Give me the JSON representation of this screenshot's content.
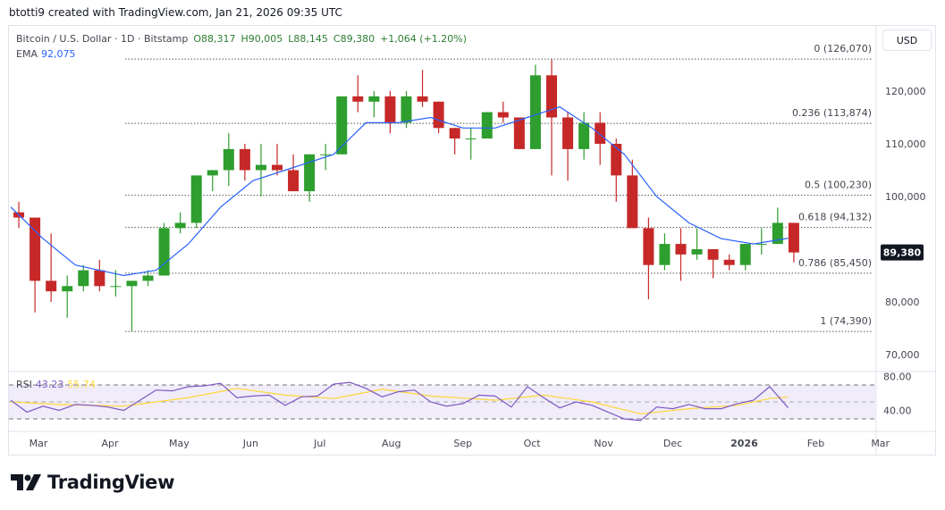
{
  "credit": "btotti9 created with TradingView.com, Jan 21, 2026 09:35 UTC",
  "legend": {
    "symbol": "Bitcoin / U.S. Dollar · 1D · Bitstamp",
    "open": "O88,317",
    "high": "H90,005",
    "low": "L88,145",
    "close": "C89,380",
    "change": "+1,064 (+1.20%)",
    "ema_label": "EMA",
    "ema_value": "92,075"
  },
  "currency_button": "USD",
  "rsi_legend": {
    "label": "RSI",
    "value": "43.23",
    "ma": "55.74"
  },
  "brand": "TradingView",
  "colors": {
    "up": "#089981",
    "up_body": "#2e9e2e",
    "down": "#c62828",
    "ema": "#2962ff",
    "rsi": "#7e57c2",
    "rsi_ma": "#fdd835",
    "rsi_band": "#f0ecfa"
  },
  "chart_data": {
    "type": "candlestick",
    "interval_note": "approximate weekly OHLC (thousand USD) read from daily chart",
    "y_ticks": [
      70000,
      80000,
      100000,
      110000,
      120000
    ],
    "y_tick_labels": [
      "70,000",
      "80,000",
      "100,000",
      "110,000",
      "120,000"
    ],
    "ylim": [
      66000,
      130000
    ],
    "x_ticks": [
      {
        "date": "2025-03-01",
        "label": "Mar"
      },
      {
        "date": "2025-04-01",
        "label": "Apr"
      },
      {
        "date": "2025-05-01",
        "label": "May"
      },
      {
        "date": "2025-06-01",
        "label": "Jun"
      },
      {
        "date": "2025-07-01",
        "label": "Jul"
      },
      {
        "date": "2025-08-01",
        "label": "Aug"
      },
      {
        "date": "2025-09-01",
        "label": "Sep"
      },
      {
        "date": "2025-10-01",
        "label": "Oct"
      },
      {
        "date": "2025-11-01",
        "label": "Nov"
      },
      {
        "date": "2025-12-01",
        "label": "Dec"
      },
      {
        "date": "2026-01-01",
        "label": "2026"
      },
      {
        "date": "2026-02-01",
        "label": "Feb"
      },
      {
        "date": "2026-03-01",
        "label": "Mar"
      }
    ],
    "last_price": 89380,
    "last_price_label": "89,380",
    "fib_levels": [
      {
        "level": "0",
        "price": 126070,
        "label": "0 (126,070)"
      },
      {
        "level": "0.236",
        "price": 113874,
        "label": "0.236 (113,874)"
      },
      {
        "level": "0.5",
        "price": 100230,
        "label": "0.5 (100,230)"
      },
      {
        "level": "0.618",
        "price": 94132,
        "label": "0.618 (94,132)"
      },
      {
        "level": "0.786",
        "price": 85450,
        "label": "0.786 (85,450)"
      },
      {
        "level": "1",
        "price": 74390,
        "label": "1 (74,390)"
      }
    ],
    "candles": [
      [
        "2025-02-17",
        97,
        99,
        94,
        96
      ],
      [
        "2025-02-24",
        96,
        96,
        78,
        84
      ],
      [
        "2025-03-03",
        84,
        93,
        80,
        82
      ],
      [
        "2025-03-10",
        82,
        85,
        77,
        83
      ],
      [
        "2025-03-17",
        83,
        87,
        82,
        86
      ],
      [
        "2025-03-24",
        86,
        88,
        82,
        83
      ],
      [
        "2025-03-31",
        83,
        86,
        81,
        83
      ],
      [
        "2025-04-07",
        83,
        84,
        74.5,
        84
      ],
      [
        "2025-04-14",
        84,
        86,
        83,
        85
      ],
      [
        "2025-04-21",
        85,
        95,
        85,
        94
      ],
      [
        "2025-04-28",
        94,
        97,
        93,
        95
      ],
      [
        "2025-05-05",
        95,
        104,
        94,
        104
      ],
      [
        "2025-05-12",
        104,
        105,
        101,
        105
      ],
      [
        "2025-05-19",
        105,
        112,
        102,
        109
      ],
      [
        "2025-05-26",
        109,
        110,
        103,
        105
      ],
      [
        "2025-06-02",
        105,
        110,
        100,
        106
      ],
      [
        "2025-06-09",
        106,
        110,
        104,
        105
      ],
      [
        "2025-06-16",
        105,
        108,
        101,
        101
      ],
      [
        "2025-06-23",
        101,
        108,
        99,
        108
      ],
      [
        "2025-06-30",
        108,
        110,
        105,
        108
      ],
      [
        "2025-07-07",
        108,
        119,
        108,
        119
      ],
      [
        "2025-07-14",
        119,
        123,
        116,
        118
      ],
      [
        "2025-07-21",
        118,
        120,
        115,
        119
      ],
      [
        "2025-07-28",
        119,
        120,
        112,
        114
      ],
      [
        "2025-08-04",
        114,
        120,
        113,
        119
      ],
      [
        "2025-08-11",
        119,
        124,
        117,
        118
      ],
      [
        "2025-08-18",
        118,
        118,
        112,
        113
      ],
      [
        "2025-08-25",
        113,
        113,
        108,
        111
      ],
      [
        "2025-09-01",
        111,
        113,
        107,
        111
      ],
      [
        "2025-09-08",
        111,
        116,
        111,
        116
      ],
      [
        "2025-09-15",
        116,
        118,
        114,
        115
      ],
      [
        "2025-09-22",
        115,
        115,
        109,
        109
      ],
      [
        "2025-09-29",
        109,
        125,
        109,
        123
      ],
      [
        "2025-10-06",
        123,
        126,
        104,
        115
      ],
      [
        "2025-10-13",
        115,
        116,
        103,
        109
      ],
      [
        "2025-10-20",
        109,
        116,
        107,
        114
      ],
      [
        "2025-10-27",
        114,
        116,
        106,
        110
      ],
      [
        "2025-11-03",
        110,
        111,
        99,
        104
      ],
      [
        "2025-11-10",
        104,
        107,
        94,
        94
      ],
      [
        "2025-11-17",
        94,
        96,
        80.5,
        87
      ],
      [
        "2025-11-24",
        87,
        93,
        86,
        91
      ],
      [
        "2025-12-01",
        91,
        94,
        84,
        89
      ],
      [
        "2025-12-08",
        89,
        94,
        88,
        90
      ],
      [
        "2025-12-15",
        90,
        90,
        84.5,
        88
      ],
      [
        "2025-12-22",
        88,
        89,
        86,
        87
      ],
      [
        "2025-12-29",
        87,
        91,
        86,
        91
      ],
      [
        "2026-01-05",
        91,
        94,
        89,
        91
      ],
      [
        "2026-01-12",
        91,
        97.9,
        91,
        95
      ],
      [
        "2026-01-19",
        95,
        95,
        87.5,
        89.38
      ]
    ],
    "ema": [
      [
        "2025-02-17",
        98
      ],
      [
        "2025-03-03",
        92
      ],
      [
        "2025-03-17",
        87
      ],
      [
        "2025-04-07",
        85
      ],
      [
        "2025-04-21",
        86
      ],
      [
        "2025-05-05",
        91
      ],
      [
        "2025-05-19",
        98
      ],
      [
        "2025-06-02",
        103
      ],
      [
        "2025-06-16",
        105
      ],
      [
        "2025-07-07",
        108
      ],
      [
        "2025-07-21",
        114
      ],
      [
        "2025-08-04",
        114
      ],
      [
        "2025-08-18",
        115
      ],
      [
        "2025-09-01",
        113
      ],
      [
        "2025-09-15",
        113
      ],
      [
        "2025-09-29",
        115
      ],
      [
        "2025-10-13",
        117
      ],
      [
        "2025-10-27",
        113
      ],
      [
        "2025-11-10",
        108
      ],
      [
        "2025-11-24",
        100
      ],
      [
        "2025-12-08",
        95
      ],
      [
        "2025-12-22",
        92
      ],
      [
        "2026-01-05",
        91
      ],
      [
        "2026-01-20",
        92.075
      ]
    ],
    "rsi": {
      "ylim": [
        20,
        90
      ],
      "y_ticks": [
        40,
        80
      ],
      "y_tick_labels": [
        "40.00",
        "80.00"
      ],
      "bands": [
        30,
        50,
        70
      ],
      "values": [
        [
          "2025-02-17",
          52
        ],
        [
          "2025-02-24",
          38
        ],
        [
          "2025-03-03",
          45
        ],
        [
          "2025-03-10",
          40
        ],
        [
          "2025-03-17",
          47
        ],
        [
          "2025-03-24",
          46
        ],
        [
          "2025-03-31",
          44
        ],
        [
          "2025-04-07",
          40
        ],
        [
          "2025-04-14",
          52
        ],
        [
          "2025-04-21",
          64
        ],
        [
          "2025-04-28",
          63
        ],
        [
          "2025-05-05",
          68
        ],
        [
          "2025-05-12",
          69
        ],
        [
          "2025-05-19",
          72
        ],
        [
          "2025-05-26",
          55
        ],
        [
          "2025-06-02",
          57
        ],
        [
          "2025-06-09",
          58
        ],
        [
          "2025-06-16",
          46
        ],
        [
          "2025-06-23",
          56
        ],
        [
          "2025-06-30",
          57
        ],
        [
          "2025-07-07",
          71
        ],
        [
          "2025-07-14",
          73
        ],
        [
          "2025-07-21",
          66
        ],
        [
          "2025-07-28",
          56
        ],
        [
          "2025-08-04",
          62
        ],
        [
          "2025-08-11",
          64
        ],
        [
          "2025-08-18",
          50
        ],
        [
          "2025-08-25",
          45
        ],
        [
          "2025-09-01",
          48
        ],
        [
          "2025-09-08",
          58
        ],
        [
          "2025-09-15",
          57
        ],
        [
          "2025-09-22",
          44
        ],
        [
          "2025-09-29",
          68
        ],
        [
          "2025-10-06",
          55
        ],
        [
          "2025-10-13",
          43
        ],
        [
          "2025-10-20",
          50
        ],
        [
          "2025-10-27",
          46
        ],
        [
          "2025-11-03",
          38
        ],
        [
          "2025-11-10",
          30
        ],
        [
          "2025-11-17",
          28
        ],
        [
          "2025-11-24",
          44
        ],
        [
          "2025-12-01",
          42
        ],
        [
          "2025-12-08",
          47
        ],
        [
          "2025-12-15",
          42
        ],
        [
          "2025-12-22",
          42
        ],
        [
          "2025-12-29",
          48
        ],
        [
          "2026-01-05",
          52
        ],
        [
          "2026-01-12",
          68
        ],
        [
          "2026-01-20",
          43.23
        ]
      ],
      "ma": [
        [
          "2025-02-17",
          50
        ],
        [
          "2025-03-10",
          47
        ],
        [
          "2025-04-07",
          45
        ],
        [
          "2025-05-05",
          55
        ],
        [
          "2025-05-26",
          66
        ],
        [
          "2025-06-16",
          58
        ],
        [
          "2025-07-07",
          54
        ],
        [
          "2025-07-28",
          65
        ],
        [
          "2025-08-18",
          57
        ],
        [
          "2025-09-15",
          52
        ],
        [
          "2025-10-06",
          58
        ],
        [
          "2025-10-27",
          50
        ],
        [
          "2025-11-17",
          36
        ],
        [
          "2025-12-08",
          42
        ],
        [
          "2025-12-29",
          46
        ],
        [
          "2026-01-12",
          54
        ],
        [
          "2026-01-20",
          55.74
        ]
      ]
    }
  }
}
